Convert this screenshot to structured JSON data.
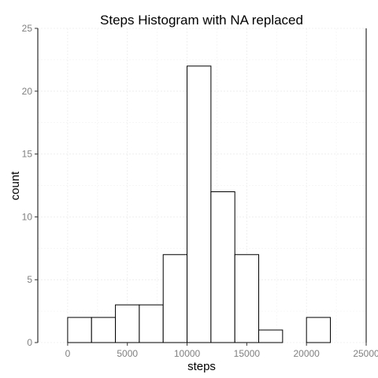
{
  "chart_data": {
    "type": "bar",
    "title": "Steps Histogram with NA replaced",
    "xlabel": "steps",
    "ylabel": "count",
    "xlim": [
      -2500,
      25000
    ],
    "ylim": [
      0,
      25
    ],
    "grid": true,
    "bins": [
      {
        "start": 0,
        "end": 2000,
        "count": 2
      },
      {
        "start": 2000,
        "end": 4000,
        "count": 2
      },
      {
        "start": 4000,
        "end": 6000,
        "count": 3
      },
      {
        "start": 6000,
        "end": 8000,
        "count": 3
      },
      {
        "start": 8000,
        "end": 10000,
        "count": 7
      },
      {
        "start": 10000,
        "end": 12000,
        "count": 22
      },
      {
        "start": 12000,
        "end": 14000,
        "count": 12
      },
      {
        "start": 14000,
        "end": 16000,
        "count": 7
      },
      {
        "start": 16000,
        "end": 18000,
        "count": 1
      },
      {
        "start": 18000,
        "end": 20000,
        "count": 0
      },
      {
        "start": 20000,
        "end": 22000,
        "count": 2
      }
    ],
    "x_ticks": [
      "0",
      "5000",
      "10000",
      "15000",
      "20000",
      "25000"
    ],
    "y_ticks": [
      "0",
      "5",
      "10",
      "15",
      "20",
      "25"
    ]
  }
}
